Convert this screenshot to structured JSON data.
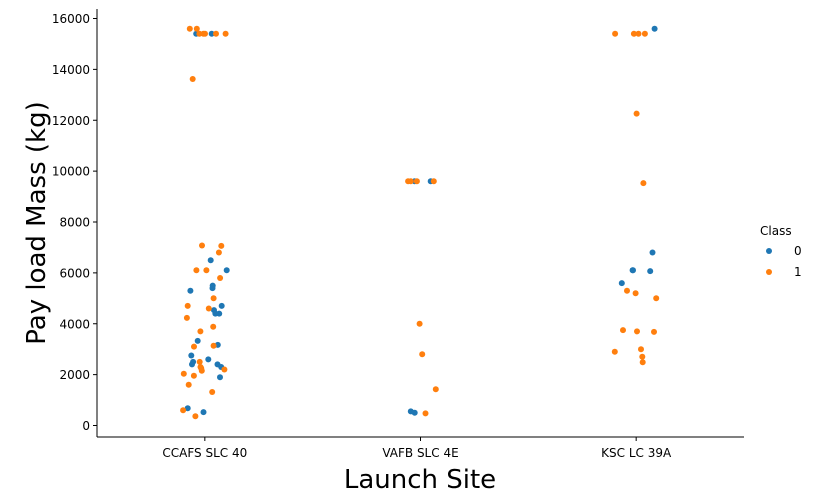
{
  "chart_data": {
    "type": "scatter",
    "style": "stripplot",
    "xlabel": "Launch Site",
    "ylabel": "Pay load Mass (kg)",
    "categories": [
      "CCAFS SLC 40",
      "VAFB SLC 4E",
      "KSC LC 39A"
    ],
    "ylim": [
      -400,
      16300
    ],
    "yticks": [
      0,
      2000,
      4000,
      6000,
      8000,
      10000,
      12000,
      14000,
      16000
    ],
    "ytick_labels": [
      "0",
      "2000",
      "4000",
      "6000",
      "8000",
      "10000",
      "12000",
      "14000",
      "16000"
    ],
    "legend": {
      "title": "Class",
      "placement": "right",
      "entries": [
        "0",
        "1"
      ]
    },
    "colors": {
      "0": "#1f77b4",
      "1": "#ff7f0e"
    },
    "series": [
      {
        "name": "0",
        "points": [
          [
            "CCAFS SLC 40",
            15400
          ],
          [
            "CCAFS SLC 40",
            15400
          ],
          [
            "CCAFS SLC 40",
            6500
          ],
          [
            "CCAFS SLC 40",
            6100
          ],
          [
            "CCAFS SLC 40",
            5500
          ],
          [
            "CCAFS SLC 40",
            5400
          ],
          [
            "CCAFS SLC 40",
            5300
          ],
          [
            "CCAFS SLC 40",
            4700
          ],
          [
            "CCAFS SLC 40",
            4535
          ],
          [
            "CCAFS SLC 40",
            4400
          ],
          [
            "CCAFS SLC 40",
            4400
          ],
          [
            "CCAFS SLC 40",
            3325
          ],
          [
            "CCAFS SLC 40",
            3170
          ],
          [
            "CCAFS SLC 40",
            2750
          ],
          [
            "CCAFS SLC 40",
            2600
          ],
          [
            "CCAFS SLC 40",
            2500
          ],
          [
            "CCAFS SLC 40",
            2400
          ],
          [
            "CCAFS SLC 40",
            2400
          ],
          [
            "CCAFS SLC 40",
            2300
          ],
          [
            "CCAFS SLC 40",
            1900
          ],
          [
            "CCAFS SLC 40",
            677
          ],
          [
            "CCAFS SLC 40",
            525
          ],
          [
            "VAFB SLC 4E",
            9600
          ],
          [
            "VAFB SLC 4E",
            9600
          ],
          [
            "VAFB SLC 4E",
            553
          ],
          [
            "VAFB SLC 4E",
            500
          ],
          [
            "KSC LC 39A",
            15600
          ],
          [
            "KSC LC 39A",
            6800
          ],
          [
            "KSC LC 39A",
            6100
          ],
          [
            "KSC LC 39A",
            6100
          ],
          [
            "KSC LC 39A",
            6070
          ],
          [
            "KSC LC 39A",
            5600
          ]
        ]
      },
      {
        "name": "1",
        "points": [
          [
            "CCAFS SLC 40",
            15600
          ],
          [
            "CCAFS SLC 40",
            15600
          ],
          [
            "CCAFS SLC 40",
            15400
          ],
          [
            "CCAFS SLC 40",
            15400
          ],
          [
            "CCAFS SLC 40",
            15400
          ],
          [
            "CCAFS SLC 40",
            15400
          ],
          [
            "CCAFS SLC 40",
            15400
          ],
          [
            "CCAFS SLC 40",
            13620
          ],
          [
            "CCAFS SLC 40",
            7076
          ],
          [
            "CCAFS SLC 40",
            7060
          ],
          [
            "CCAFS SLC 40",
            6800
          ],
          [
            "CCAFS SLC 40",
            6100
          ],
          [
            "CCAFS SLC 40",
            6100
          ],
          [
            "CCAFS SLC 40",
            5800
          ],
          [
            "CCAFS SLC 40",
            5000
          ],
          [
            "CCAFS SLC 40",
            4700
          ],
          [
            "CCAFS SLC 40",
            4600
          ],
          [
            "CCAFS SLC 40",
            4230
          ],
          [
            "CCAFS SLC 40",
            3880
          ],
          [
            "CCAFS SLC 40",
            3700
          ],
          [
            "CCAFS SLC 40",
            3136
          ],
          [
            "CCAFS SLC 40",
            3100
          ],
          [
            "CCAFS SLC 40",
            2500
          ],
          [
            "CCAFS SLC 40",
            2300
          ],
          [
            "CCAFS SLC 40",
            2257
          ],
          [
            "CCAFS SLC 40",
            2200
          ],
          [
            "CCAFS SLC 40",
            2150
          ],
          [
            "CCAFS SLC 40",
            2034
          ],
          [
            "CCAFS SLC 40",
            1952
          ],
          [
            "CCAFS SLC 40",
            1600
          ],
          [
            "CCAFS SLC 40",
            1316
          ],
          [
            "CCAFS SLC 40",
            600
          ],
          [
            "CCAFS SLC 40",
            362
          ],
          [
            "VAFB SLC 4E",
            9600
          ],
          [
            "VAFB SLC 4E",
            9600
          ],
          [
            "VAFB SLC 4E",
            9600
          ],
          [
            "VAFB SLC 4E",
            9600
          ],
          [
            "VAFB SLC 4E",
            4000
          ],
          [
            "VAFB SLC 4E",
            2800
          ],
          [
            "VAFB SLC 4E",
            1425
          ],
          [
            "VAFB SLC 4E",
            475
          ],
          [
            "KSC LC 39A",
            15400
          ],
          [
            "KSC LC 39A",
            15400
          ],
          [
            "KSC LC 39A",
            15400
          ],
          [
            "KSC LC 39A",
            15400
          ],
          [
            "KSC LC 39A",
            12260
          ],
          [
            "KSC LC 39A",
            9530
          ],
          [
            "KSC LC 39A",
            5300
          ],
          [
            "KSC LC 39A",
            5200
          ],
          [
            "KSC LC 39A",
            5000
          ],
          [
            "KSC LC 39A",
            3750
          ],
          [
            "KSC LC 39A",
            3700
          ],
          [
            "KSC LC 39A",
            3681
          ],
          [
            "KSC LC 39A",
            3000
          ],
          [
            "KSC LC 39A",
            2900
          ],
          [
            "KSC LC 39A",
            2700
          ],
          [
            "KSC LC 39A",
            2490
          ]
        ]
      }
    ]
  }
}
